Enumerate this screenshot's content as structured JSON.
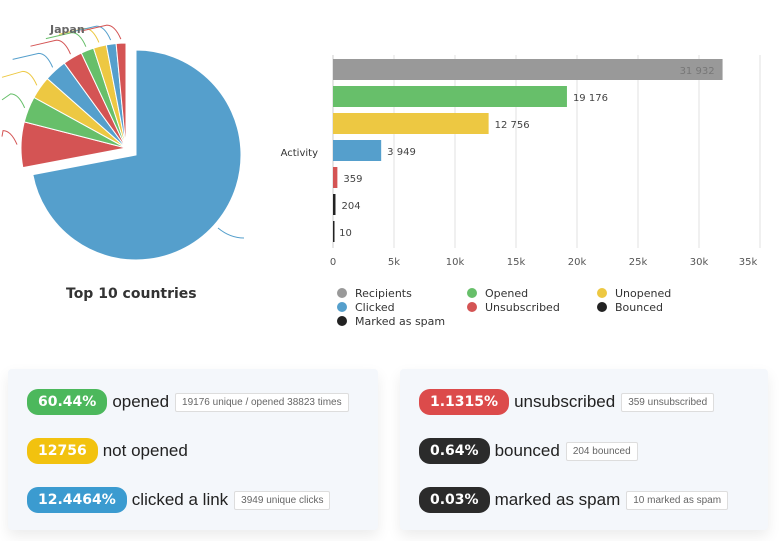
{
  "chart_data": [
    {
      "type": "pie",
      "title": "Top 10 countries",
      "labels_visible": [
        "Japan"
      ],
      "values_percent_est": [
        72,
        7,
        4,
        3.5,
        3.5,
        3,
        2,
        2,
        1.5,
        1.5
      ],
      "colors": [
        "#559fcc",
        "#d45454",
        "#67bf6a",
        "#edc842",
        "#559fcc",
        "#d45454",
        "#67bf6a",
        "#edc842",
        "#559fcc",
        "#d45454"
      ]
    },
    {
      "type": "bar",
      "orientation": "horizontal",
      "category": "Activity",
      "series": [
        {
          "name": "Recipients",
          "value": 31932,
          "label": "31 932",
          "color": "#999999"
        },
        {
          "name": "Opened",
          "value": 19176,
          "label": "19 176",
          "color": "#67bf6a"
        },
        {
          "name": "Unopened",
          "value": 12756,
          "label": "12 756",
          "color": "#edc842"
        },
        {
          "name": "Clicked",
          "value": 3949,
          "label": "3 949",
          "color": "#559fcc"
        },
        {
          "name": "Unsubscribed",
          "value": 359,
          "label": "359",
          "color": "#d45454"
        },
        {
          "name": "Bounced",
          "value": 204,
          "label": "204",
          "color": "#222222"
        },
        {
          "name": "Marked as spam",
          "value": 10,
          "label": "10",
          "color": "#222222"
        }
      ],
      "xlim": [
        0,
        35000
      ],
      "xticks": [
        "0",
        "5k",
        "10k",
        "15k",
        "20k",
        "25k",
        "30k",
        "35k"
      ],
      "grid": true,
      "legend": "bottom"
    }
  ],
  "stats": {
    "left": [
      {
        "badge": "60.44%",
        "label": "opened",
        "tag": "19176 unique / opened 38823 times",
        "color": "#4cb85c"
      },
      {
        "badge": "12756",
        "label": "not opened",
        "tag": "",
        "color": "#f2c20f"
      },
      {
        "badge": "12.4464%",
        "label": "clicked a link",
        "tag": "3949 unique clicks",
        "color": "#3b9bd0"
      }
    ],
    "right": [
      {
        "badge": "1.1315%",
        "label": "unsubscribed",
        "tag": "359 unsubscribed",
        "color": "#dc4b4b"
      },
      {
        "badge": "0.64%",
        "label": "bounced",
        "tag": "204 bounced",
        "color": "#2b2b2b"
      },
      {
        "badge": "0.03%",
        "label": "marked as spam",
        "tag": "10 marked as spam",
        "color": "#2b2b2b"
      }
    ]
  }
}
